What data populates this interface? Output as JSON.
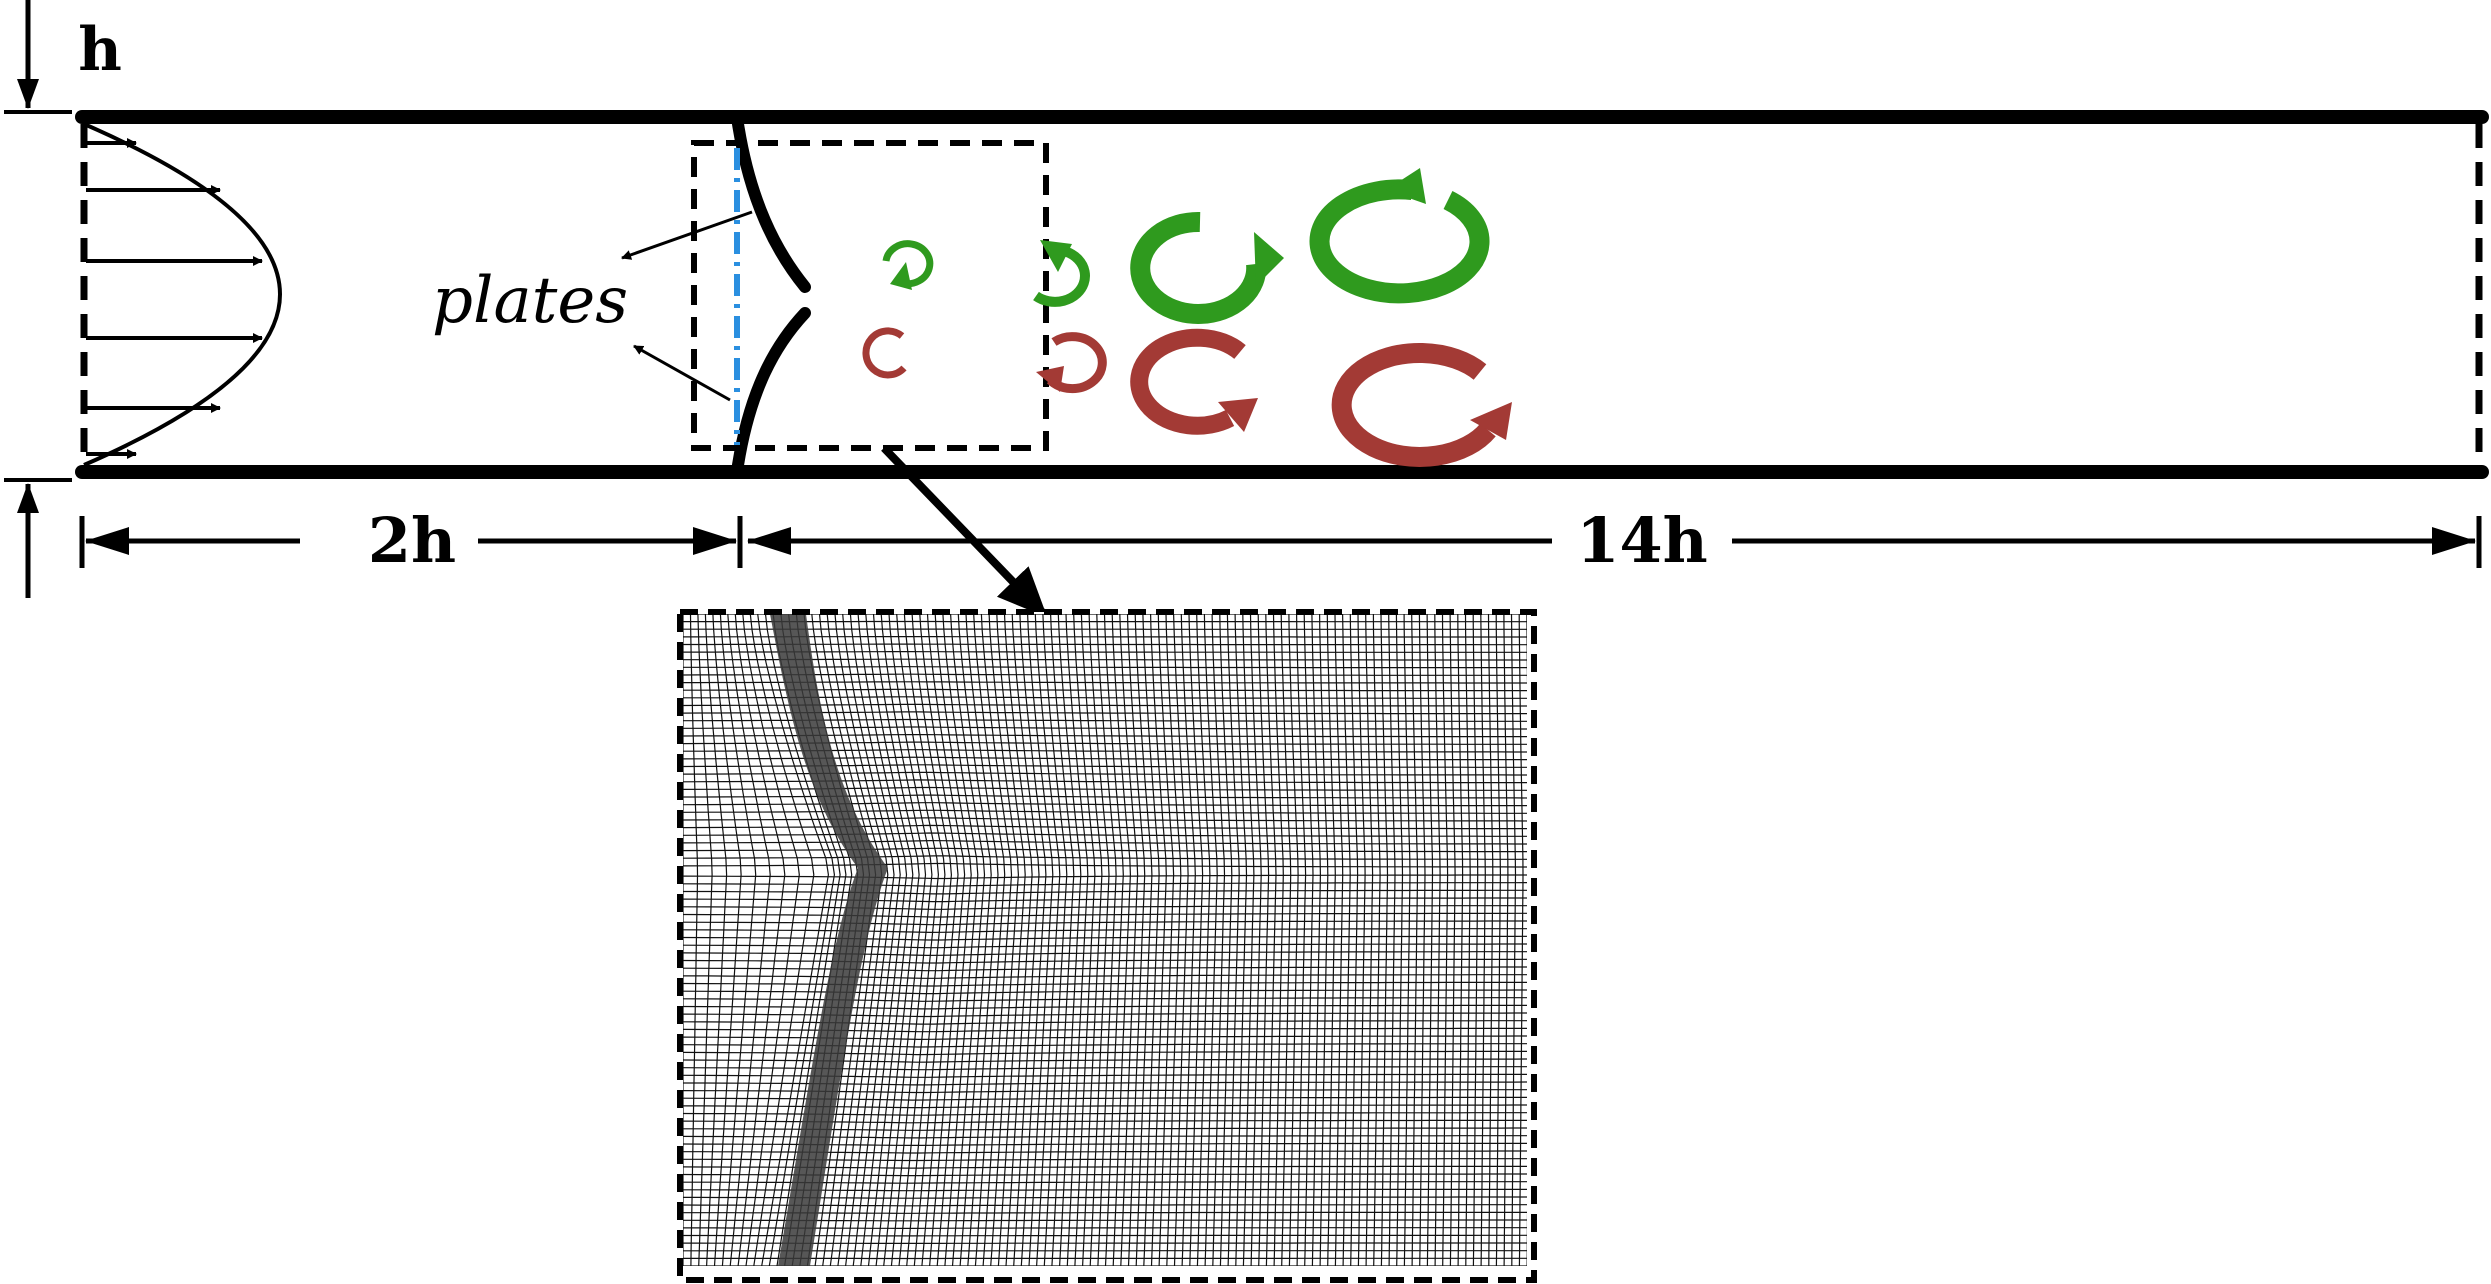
{
  "labels": {
    "h": "h",
    "plates": "plates",
    "dim_upstream": "2h",
    "dim_downstream": "14h"
  },
  "colors": {
    "vortex_green": "#2f9a1e",
    "vortex_red": "#a33a35",
    "centerline_blue": "#2a8fe0",
    "line": "#000000"
  },
  "mesh": {
    "description_icon": "structured-mesh-grid",
    "columns": 110,
    "rows": 85
  }
}
